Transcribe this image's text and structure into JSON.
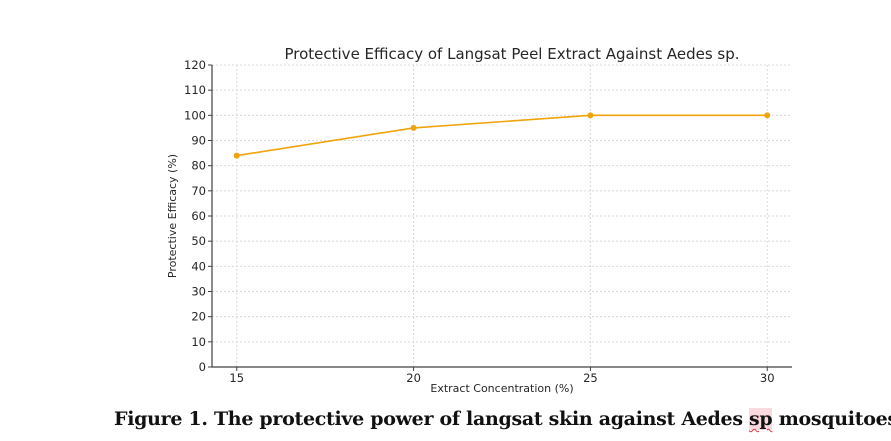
{
  "chart_data": {
    "type": "line",
    "title": "Protective Efficacy of Langsat Peel Extract Against Aedes sp.",
    "xlabel": "Extract Concentration (%)",
    "ylabel": "Protective Efficacy (%)",
    "x": [
      15,
      20,
      25,
      30
    ],
    "series": [
      {
        "name": "Protective Efficacy",
        "values": [
          84,
          95,
          100,
          100
        ],
        "color": "#f0a30a",
        "marker": "circle"
      }
    ],
    "xlim": [
      14.3,
      30.7
    ],
    "ylim": [
      0,
      120
    ],
    "xticks": [
      15,
      20,
      25,
      30
    ],
    "yticks": [
      0,
      10,
      20,
      30,
      40,
      50,
      60,
      70,
      80,
      90,
      100,
      110,
      120
    ],
    "grid": true,
    "legend": "none"
  },
  "caption": {
    "prefix": "Figure 1. The protective power of langsat skin against Aedes ",
    "flagged_word": "sp",
    "suffix": " mosquitoes"
  }
}
